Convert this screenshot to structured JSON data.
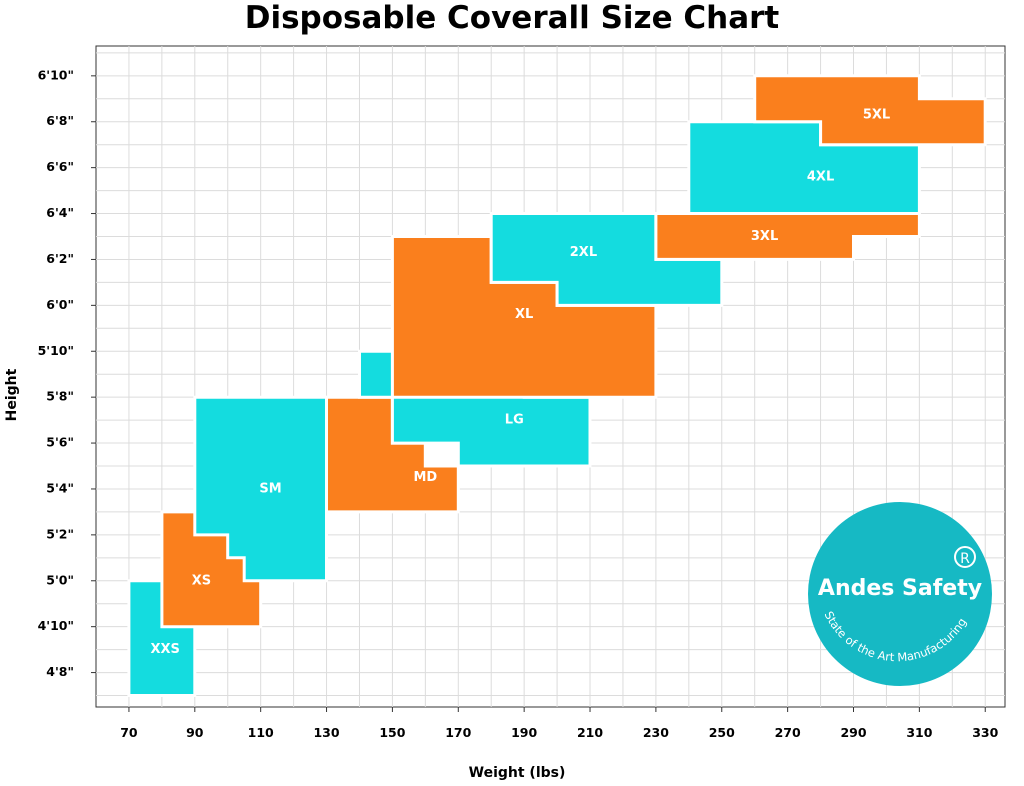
{
  "chart_data": {
    "type": "size-region",
    "title": "Disposable Coverall Size Chart",
    "xlabel": "Weight (lbs)",
    "ylabel": "Height",
    "xlim": [
      60,
      336
    ],
    "x_ticks": [
      70,
      90,
      110,
      130,
      150,
      170,
      190,
      210,
      230,
      250,
      270,
      290,
      310,
      330
    ],
    "y_ticks": [
      {
        "inches": 56,
        "label": "4'8\""
      },
      {
        "inches": 58,
        "label": "4'10\""
      },
      {
        "inches": 60,
        "label": "5'0\""
      },
      {
        "inches": 62,
        "label": "5'2\""
      },
      {
        "inches": 64,
        "label": "5'4\""
      },
      {
        "inches": 66,
        "label": "5'6\""
      },
      {
        "inches": 68,
        "label": "5'8\""
      },
      {
        "inches": 70,
        "label": "5'10\""
      },
      {
        "inches": 72,
        "label": "6'0\""
      },
      {
        "inches": 74,
        "label": "6'2\""
      },
      {
        "inches": 76,
        "label": "6'4\""
      },
      {
        "inches": 78,
        "label": "6'6\""
      },
      {
        "inches": 80,
        "label": "6'8\""
      },
      {
        "inches": 82,
        "label": "6'10\""
      }
    ],
    "grid": true,
    "sizes": [
      {
        "label": "XXS",
        "color": "#14dcdf",
        "label_at": [
          81,
          57
        ],
        "polygon": [
          [
            70,
            55
          ],
          [
            90,
            55
          ],
          [
            90,
            60
          ],
          [
            70,
            60
          ]
        ]
      },
      {
        "label": "XS",
        "color": "#fa7f1d",
        "label_at": [
          92,
          60
        ],
        "polygon": [
          [
            80,
            58
          ],
          [
            110,
            58
          ],
          [
            110,
            61
          ],
          [
            105,
            61
          ],
          [
            105,
            62
          ],
          [
            100,
            62
          ],
          [
            100,
            63
          ],
          [
            80,
            63
          ]
        ]
      },
      {
        "label": "SM",
        "color": "#14dcdf",
        "label_at": [
          113,
          64
        ],
        "polygon": [
          [
            105,
            60
          ],
          [
            130,
            60
          ],
          [
            130,
            68
          ],
          [
            90,
            68
          ],
          [
            90,
            62
          ],
          [
            100,
            62
          ],
          [
            100,
            61
          ],
          [
            105,
            61
          ]
        ]
      },
      {
        "label": "MD",
        "color": "#fa7f1d",
        "label_at": [
          160,
          64.5
        ],
        "polygon": [
          [
            130,
            63
          ],
          [
            170,
            63
          ],
          [
            170,
            65
          ],
          [
            160,
            65
          ],
          [
            160,
            66
          ],
          [
            150,
            66
          ],
          [
            150,
            68
          ],
          [
            130,
            68
          ]
        ]
      },
      {
        "label": "LG",
        "color": "#14dcdf",
        "label_at": [
          187,
          67
        ],
        "polygon": [
          [
            170,
            65
          ],
          [
            210,
            65
          ],
          [
            210,
            68
          ],
          [
            190,
            68
          ],
          [
            190,
            70
          ],
          [
            140,
            70
          ],
          [
            140,
            68
          ],
          [
            150,
            68
          ],
          [
            150,
            66
          ],
          [
            170,
            66
          ]
        ]
      },
      {
        "label": "XL",
        "color": "#fa7f1d",
        "label_at": [
          190,
          71.6
        ],
        "polygon": [
          [
            150,
            68
          ],
          [
            190,
            68
          ],
          [
            230,
            68
          ],
          [
            230,
            72
          ],
          [
            200,
            72
          ],
          [
            200,
            73
          ],
          [
            180,
            73
          ],
          [
            180,
            75
          ],
          [
            150,
            75
          ],
          [
            150,
            70
          ]
        ]
      },
      {
        "label": "2XL",
        "color": "#14dcdf",
        "label_at": [
          208,
          74.3
        ],
        "polygon": [
          [
            200,
            72
          ],
          [
            250,
            72
          ],
          [
            250,
            74
          ],
          [
            230,
            74
          ],
          [
            230,
            76
          ],
          [
            180,
            76
          ],
          [
            180,
            73
          ],
          [
            200,
            73
          ]
        ]
      },
      {
        "label": "3XL",
        "color": "#fa7f1d",
        "label_at": [
          263,
          75
        ],
        "polygon": [
          [
            230,
            74
          ],
          [
            290,
            74
          ],
          [
            290,
            75
          ],
          [
            310,
            75
          ],
          [
            310,
            76
          ],
          [
            230,
            76
          ]
        ]
      },
      {
        "label": "4XL",
        "color": "#14dcdf",
        "label_at": [
          280,
          77.6
        ],
        "polygon": [
          [
            240,
            76
          ],
          [
            310,
            76
          ],
          [
            310,
            79
          ],
          [
            280,
            79
          ],
          [
            280,
            80
          ],
          [
            240,
            80
          ]
        ]
      },
      {
        "label": "5XL",
        "color": "#fa7f1d",
        "label_at": [
          297,
          80.3
        ],
        "polygon": [
          [
            260,
            82
          ],
          [
            310,
            82
          ],
          [
            310,
            81
          ],
          [
            330,
            81
          ],
          [
            330,
            79
          ],
          [
            280,
            79
          ],
          [
            280,
            80
          ],
          [
            260,
            80
          ]
        ]
      }
    ]
  },
  "logo": {
    "name": "Andes Safety",
    "registered_mark": "R",
    "tagline": "State of the Art Manufacturing"
  }
}
